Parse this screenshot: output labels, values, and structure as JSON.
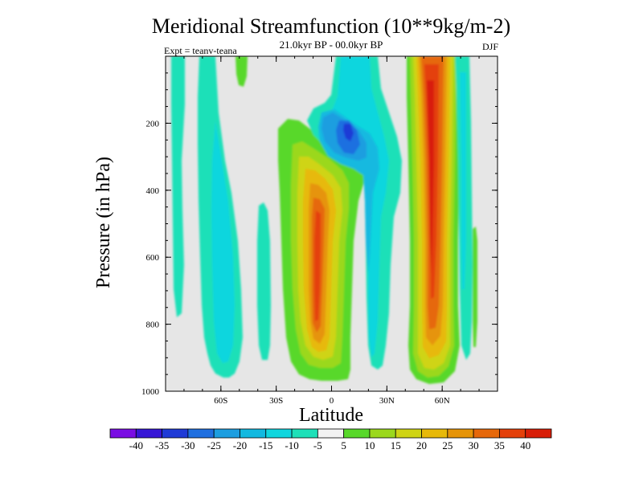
{
  "chart_data": {
    "type": "heatmap",
    "title": "Meridional Streamfunction (10**9kg/m-2)",
    "subtitle": "21.0kyr BP - 00.0kyr BP",
    "experiment": "Expt = teanv-teana",
    "season": "DJF",
    "xlabel": "Latitude",
    "ylabel": "Pressure (in hPa)",
    "xlim": [
      -90,
      90
    ],
    "ylim": [
      0,
      1000
    ],
    "y_inverted": true,
    "x_ticks": [
      {
        "value": -60,
        "label": "60S"
      },
      {
        "value": -30,
        "label": "30S"
      },
      {
        "value": 0,
        "label": "0"
      },
      {
        "value": 30,
        "label": "30N"
      },
      {
        "value": 60,
        "label": "60N"
      }
    ],
    "y_ticks": [
      {
        "value": 200,
        "label": "200"
      },
      {
        "value": 400,
        "label": "400"
      },
      {
        "value": 600,
        "label": "600"
      },
      {
        "value": 800,
        "label": "800"
      },
      {
        "value": 1000,
        "label": "1000"
      }
    ],
    "colorbar": {
      "levels": [
        "-40",
        "-35",
        "-30",
        "-25",
        "-20",
        "-15",
        "-10",
        "-5",
        "5",
        "10",
        "15",
        "20",
        "25",
        "30",
        "35",
        "40"
      ],
      "colors": [
        "#7a0de3",
        "#3616d6",
        "#1f3ad6",
        "#1f6fe0",
        "#1d9ee0",
        "#12b9e0",
        "#10d6de",
        "#1ee0b8",
        "#f2f2f2",
        "#58d82a",
        "#9bd81c",
        "#cfd414",
        "#e7b909",
        "#e69408",
        "#e6680a",
        "#e4400a",
        "#d81e08"
      ],
      "background_color": "#e6e6e6"
    },
    "features": [
      {
        "name": "SH high-latitude negative cell",
        "value_range": [
          -15,
          -5
        ],
        "lat_range": [
          -80,
          -77
        ],
        "pressure_range": [
          0,
          820
        ]
      },
      {
        "name": "SH subpolar negative cell",
        "value_range": [
          -15,
          -5
        ],
        "lat_range": [
          -73,
          -57
        ],
        "pressure_range": [
          0,
          965
        ]
      },
      {
        "name": "SH positive cell top",
        "value_range": [
          5,
          10
        ],
        "lat_range": [
          -47,
          -43
        ],
        "pressure_range": [
          0,
          120
        ]
      },
      {
        "name": "SH midlatitude negative strip",
        "value_range": [
          -10,
          -5
        ],
        "lat_range": [
          -37,
          -33
        ],
        "pressure_range": [
          420,
          920
        ]
      },
      {
        "name": "Tropical positive cell",
        "value_range": [
          5,
          40
        ],
        "lat_range": [
          -27,
          10
        ],
        "pressure_range": [
          130,
          970
        ],
        "max_value": 40,
        "center": [
          -2,
          650
        ]
      },
      {
        "name": "Upper tropical negative cell",
        "value_range": [
          -30,
          -5
        ],
        "lat_range": [
          5,
          50
        ],
        "pressure_range": [
          0,
          960
        ],
        "min_value": -30,
        "center": [
          10,
          210
        ]
      },
      {
        "name": "NH midlatitude positive cell",
        "value_range": [
          5,
          40
        ],
        "lat_range": [
          42,
          65
        ],
        "pressure_range": [
          0,
          985
        ],
        "max_value": 40,
        "center": [
          54,
          550
        ]
      },
      {
        "name": "NH high-latitude negative cell",
        "value_range": [
          -15,
          -5
        ],
        "lat_range": [
          68,
          75
        ],
        "pressure_range": [
          0,
          930
        ]
      },
      {
        "name": "NH polar positive strip",
        "value_range": [
          5,
          10
        ],
        "lat_range": [
          84,
          85
        ],
        "pressure_range": [
          660,
          860
        ]
      }
    ]
  }
}
